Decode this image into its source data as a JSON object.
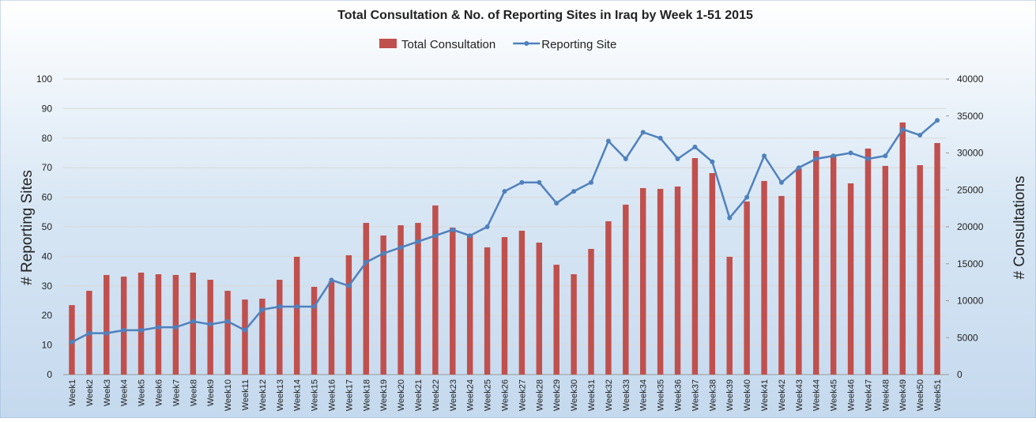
{
  "chart_data": {
    "type": "bar_line",
    "title": "Total Consultation & No. of Reporting Sites in Iraq by Week 1-51 2015",
    "ylabel": "# Reporting Sites",
    "y2label": "# Consultations",
    "categories": [
      "Week1",
      "Week2",
      "Week3",
      "Week4",
      "Week5",
      "Week6",
      "Week7",
      "Week8",
      "Week9",
      "Week10",
      "Week11",
      "Week12",
      "Week13",
      "Week14",
      "Week15",
      "Week16",
      "Week17",
      "Week18",
      "Week19",
      "Week20",
      "Week21",
      "Week22",
      "Week23",
      "Week24",
      "Week25",
      "Week26",
      "Week27",
      "Week28",
      "Week29",
      "Week30",
      "Week31",
      "Week32",
      "Week33",
      "Week34",
      "Week35",
      "Week36",
      "Week37",
      "Week38",
      "Week39",
      "Week40",
      "Week41",
      "Week42",
      "Week43",
      "Week44",
      "Week45",
      "Week46",
      "Week47",
      "Week48",
      "Week49",
      "Week50",
      "Week51"
    ],
    "series": [
      {
        "name": "Total Consultation",
        "type": "bar",
        "axis": "y2",
        "color": "#c0504d",
        "values": [
          9400,
          11340,
          13480,
          13260,
          13800,
          13580,
          13480,
          13800,
          12830,
          11340,
          10160,
          10270,
          12830,
          15940,
          11870,
          12620,
          16150,
          20530,
          18820,
          20210,
          20530,
          22890,
          19890,
          18820,
          17220,
          18610,
          19470,
          17860,
          14870,
          13580,
          17010,
          20750,
          23000,
          25240,
          25130,
          25450,
          29300,
          27270,
          15940,
          23420,
          26200,
          24170,
          27910,
          30270,
          29730,
          25880,
          30590,
          28240,
          34120,
          28340,
          31340
        ]
      },
      {
        "name": "Reporting Site",
        "type": "line",
        "axis": "y",
        "color": "#4f81bd",
        "values": [
          11,
          14,
          14,
          15,
          15,
          16,
          16,
          18,
          17,
          18,
          15,
          22,
          23,
          23,
          23,
          32,
          30,
          38,
          41,
          43,
          45,
          47,
          49,
          47,
          50,
          62,
          65,
          65,
          58,
          62,
          65,
          79,
          73,
          82,
          80,
          73,
          77,
          72,
          53,
          60,
          74,
          65,
          70,
          73,
          74,
          75,
          73,
          74,
          83,
          81,
          86
        ]
      }
    ],
    "ylim": [
      0,
      100
    ],
    "yticks": [
      0,
      10,
      20,
      30,
      40,
      50,
      60,
      70,
      80,
      90,
      100
    ],
    "y2lim": [
      0,
      40000
    ],
    "y2ticks": [
      0,
      5000,
      10000,
      15000,
      20000,
      25000,
      30000,
      35000,
      40000
    ],
    "grid": true,
    "legend": "top"
  }
}
